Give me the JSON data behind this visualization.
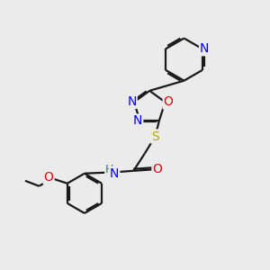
{
  "background_color": "#ebebeb",
  "bond_color": "#1a1a1a",
  "atom_colors": {
    "N": "#0000ee",
    "O": "#ee0000",
    "S": "#bbaa00",
    "H": "#337777",
    "C": "#1a1a1a"
  },
  "line_width": 1.6,
  "font_size": 10
}
